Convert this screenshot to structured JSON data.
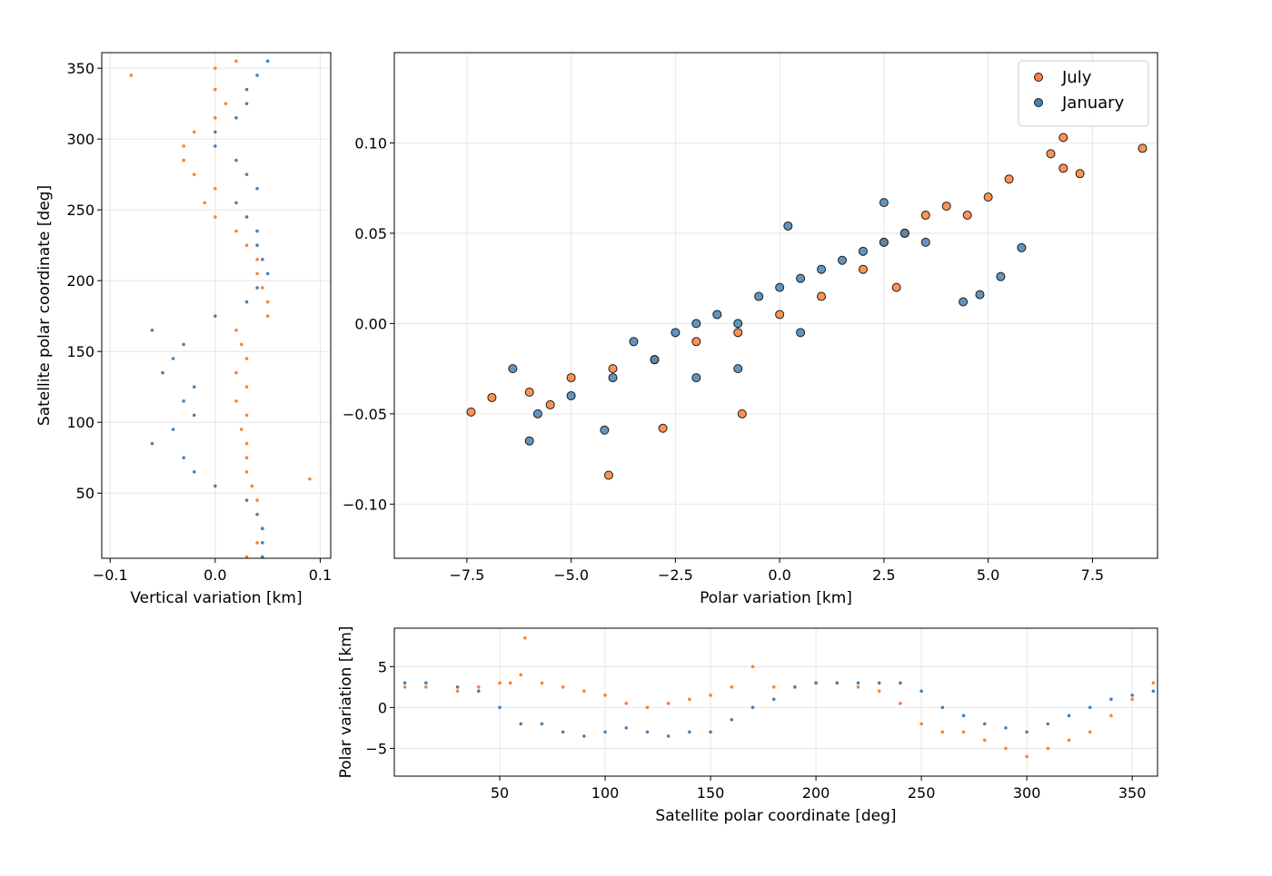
{
  "chart_data": [
    {
      "type": "scatter",
      "xlabel": "Vertical variation [km]",
      "ylabel": "Satellite polar coordinate [deg]",
      "xlim": [
        -0.108,
        0.11
      ],
      "ylim": [
        4,
        361
      ],
      "xticks": [
        {
          "value": -0.1,
          "label": "−0.1"
        },
        {
          "value": 0,
          "label": "0.0"
        },
        {
          "value": 0.1,
          "label": "0.1"
        }
      ],
      "yticks": [
        50,
        100,
        150,
        200,
        250,
        300,
        350
      ],
      "grid": true,
      "marker_size": 1.8,
      "series": [
        {
          "color": "#fd8035",
          "x": [
            0.03,
            0.04,
            0.045,
            0.04,
            0.04,
            0.035,
            0.09,
            0.03,
            0.03,
            0.03,
            0.025,
            0.03,
            0.02,
            0.03,
            0.02,
            0.03,
            0.025,
            0.02,
            0.05,
            0.05,
            0.045,
            0.04,
            0.04,
            0.03,
            0.02,
            0.0,
            -0.01,
            0.0,
            -0.02,
            -0.03,
            -0.03,
            -0.02,
            0.0,
            0.01,
            0.0,
            -0.08,
            0.0,
            0.02
          ],
          "values": [
            5,
            15,
            25,
            35,
            45,
            55,
            60,
            65,
            75,
            85,
            95,
            105,
            115,
            125,
            135,
            145,
            155,
            165,
            175,
            185,
            195,
            205,
            215,
            225,
            235,
            245,
            255,
            265,
            275,
            285,
            295,
            305,
            315,
            325,
            335,
            345,
            350,
            355
          ]
        },
        {
          "color": "#4682b4",
          "x": [
            0.045,
            0.045,
            0.045,
            0.04,
            0.03,
            0.0,
            -0.02,
            -0.03,
            -0.06,
            -0.04,
            -0.02,
            -0.03,
            -0.02,
            -0.05,
            -0.04,
            -0.03,
            -0.06,
            0.0,
            0.03,
            0.04,
            0.05,
            0.045,
            0.04,
            0.04,
            0.03,
            0.02,
            0.04,
            0.03,
            0.02,
            0.0,
            0.0,
            0.02,
            0.03,
            0.03,
            0.04,
            0.05
          ],
          "values": [
            5,
            15,
            25,
            35,
            45,
            55,
            65,
            75,
            85,
            95,
            105,
            115,
            125,
            135,
            145,
            155,
            165,
            175,
            185,
            195,
            205,
            215,
            225,
            235,
            245,
            255,
            265,
            275,
            285,
            295,
            305,
            315,
            325,
            335,
            345,
            355
          ]
        }
      ]
    },
    {
      "type": "scatter",
      "xlabel": "Polar variation [km]",
      "xlim": [
        -9.24,
        9.06
      ],
      "ylim": [
        -0.13,
        0.15
      ],
      "xticks": [
        {
          "value": -7.5,
          "label": "−7.5"
        },
        {
          "value": -5,
          "label": "−5.0"
        },
        {
          "value": -2.5,
          "label": "−2.5"
        },
        {
          "value": 0,
          "label": "0.0"
        },
        {
          "value": 2.5,
          "label": "2.5"
        },
        {
          "value": 5,
          "label": "5.0"
        },
        {
          "value": 7.5,
          "label": "7.5"
        }
      ],
      "yticks": [
        {
          "value": -0.1,
          "label": "−0.10"
        },
        {
          "value": -0.05,
          "label": "−0.05"
        },
        {
          "value": 0,
          "label": "0.00"
        },
        {
          "value": 0.05,
          "label": "0.05"
        },
        {
          "value": 0.1,
          "label": "0.10"
        }
      ],
      "grid": true,
      "marker_size": 4.5,
      "marker_edge": "#1a1a1a",
      "legend": "upper right",
      "series": [
        {
          "name": "July",
          "color": "#fd8035",
          "x": [
            -7.4,
            -6.9,
            -6.0,
            -5.0,
            -4.0,
            -4.1,
            -3.0,
            -2.0,
            -1.0,
            -0.9,
            0,
            1.0,
            2.0,
            2.5,
            3.0,
            3.5,
            4.0,
            4.5,
            5.0,
            5.5,
            6.5,
            6.8,
            6.8,
            7.2,
            8.7,
            2.8,
            -5.5,
            -2.8
          ],
          "values": [
            -0.049,
            -0.041,
            -0.038,
            -0.03,
            -0.025,
            -0.084,
            -0.02,
            -0.01,
            -0.005,
            -0.05,
            0.005,
            0.015,
            0.03,
            0.045,
            0.05,
            0.06,
            0.065,
            0.06,
            0.07,
            0.08,
            0.094,
            0.103,
            0.086,
            0.083,
            0.097,
            0.02,
            -0.045,
            -0.058
          ]
        },
        {
          "name": "January",
          "color": "#4682b4",
          "x": [
            -6.0,
            -5.8,
            -5.0,
            -4.0,
            -3.5,
            -3.0,
            -2.5,
            -2.0,
            -1.5,
            -1.0,
            -0.5,
            0,
            0.5,
            1.0,
            1.5,
            2.0,
            2.5,
            3.0,
            3.5,
            2.5,
            0.2,
            -2.0,
            -1.0,
            0.5,
            4.4,
            4.8,
            5.3,
            5.8,
            -4.2,
            -6.4
          ],
          "values": [
            -0.065,
            -0.05,
            -0.04,
            -0.03,
            -0.01,
            -0.02,
            -0.005,
            0.0,
            0.005,
            0.0,
            0.015,
            0.02,
            0.025,
            0.03,
            0.035,
            0.04,
            0.045,
            0.05,
            0.045,
            0.067,
            0.054,
            -0.03,
            -0.025,
            -0.005,
            0.012,
            0.016,
            0.026,
            0.042,
            -0.059,
            -0.025
          ]
        }
      ]
    },
    {
      "type": "scatter",
      "xlabel": "Satellite polar coordinate [deg]",
      "ylabel": "Polar variation [km]",
      "xlim": [
        0,
        362
      ],
      "ylim": [
        -8.4,
        9.7
      ],
      "xticks": [
        50,
        100,
        150,
        200,
        250,
        300,
        350
      ],
      "yticks": [
        {
          "value": -5,
          "label": "−5"
        },
        0,
        5
      ],
      "grid": true,
      "marker_size": 1.8,
      "series": [
        {
          "color": "#fd8035",
          "x": [
            5,
            15,
            30,
            40,
            50,
            55,
            60,
            62,
            70,
            80,
            90,
            100,
            110,
            120,
            130,
            140,
            150,
            160,
            170,
            180,
            190,
            200,
            210,
            220,
            230,
            240,
            250,
            260,
            270,
            280,
            290,
            300,
            310,
            320,
            330,
            340,
            350,
            360
          ],
          "values": [
            2.5,
            2.5,
            2,
            2.5,
            3,
            3,
            4,
            8.5,
            3,
            2.5,
            2,
            1.5,
            0.5,
            0,
            0.5,
            1,
            1.5,
            2.5,
            5,
            2.5,
            2.5,
            3,
            3,
            2.5,
            2,
            0.5,
            -2,
            -3,
            -3,
            -4,
            -5,
            -6,
            -5,
            -4,
            -3,
            -1,
            1,
            3
          ]
        },
        {
          "color": "#4682b4",
          "x": [
            5,
            15,
            30,
            40,
            50,
            60,
            70,
            80,
            90,
            100,
            110,
            120,
            130,
            140,
            150,
            160,
            170,
            180,
            190,
            200,
            210,
            220,
            230,
            240,
            250,
            260,
            270,
            280,
            290,
            300,
            310,
            320,
            330,
            340,
            350,
            360
          ],
          "values": [
            3,
            3,
            2.5,
            2,
            0,
            -2,
            -2,
            -3,
            -3.5,
            -3,
            -2.5,
            -3,
            -3.5,
            -3,
            -3,
            -1.5,
            0,
            1,
            2.5,
            3,
            3,
            3,
            3,
            3,
            2,
            0,
            -1,
            -2,
            -2.5,
            -3,
            -2,
            -1,
            0,
            1,
            1.5,
            2
          ]
        }
      ]
    }
  ]
}
